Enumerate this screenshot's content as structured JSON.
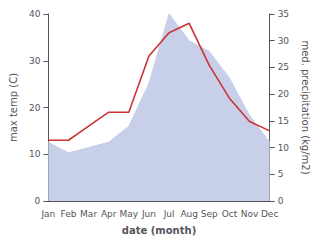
{
  "chart_data": {
    "type": "line",
    "xlabel": "date (month)",
    "ylabel": "max temp (C)",
    "y2label": "med. precipitation (kg/m2)",
    "categories": [
      "Jan",
      "Feb",
      "Mar",
      "Apr",
      "May",
      "Jun",
      "Jul",
      "Aug",
      "Sep",
      "Oct",
      "Nov",
      "Dec"
    ],
    "series": [
      {
        "type": "area",
        "color": "#c8cfe8",
        "axis": "y2",
        "values": [
          11,
          9,
          10,
          11,
          14,
          22,
          35,
          30,
          28,
          23,
          16,
          11
        ]
      },
      {
        "type": "line",
        "color": "#cc3333",
        "values": [
          13,
          13,
          16,
          19,
          19,
          31,
          36,
          38,
          29,
          22,
          17,
          15
        ]
      }
    ],
    "ylim": [
      0,
      40
    ],
    "yticks": [
      0,
      10,
      20,
      30,
      40
    ],
    "y2lim": [
      0,
      35
    ],
    "y2ticks": [
      0,
      5,
      10,
      15,
      20,
      25,
      30,
      35
    ],
    "grid": false
  }
}
